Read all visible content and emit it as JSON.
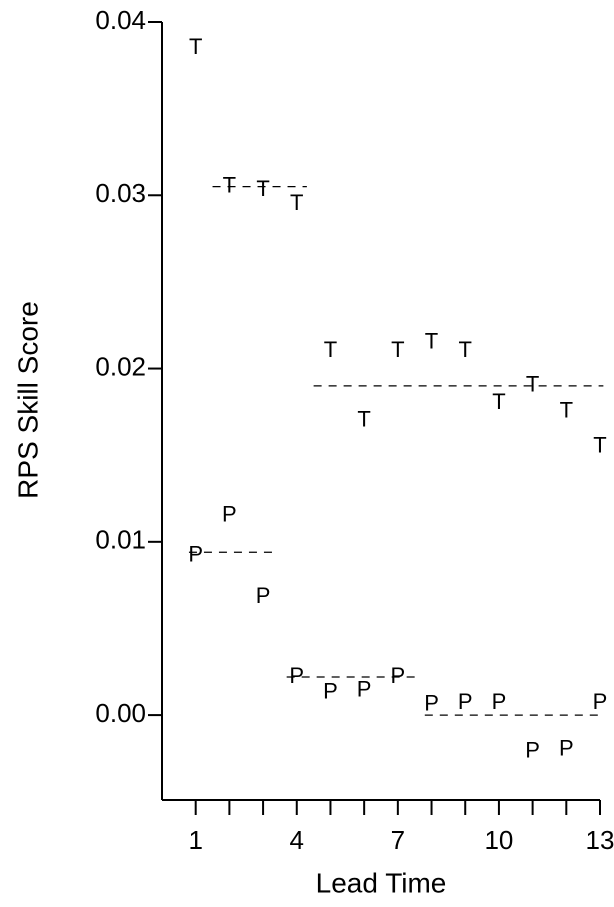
{
  "chart_data": {
    "type": "scatter",
    "xlabel": "Lead Time",
    "ylabel": "RPS  Skill Score",
    "x": [
      1,
      2,
      3,
      4,
      5,
      6,
      7,
      8,
      9,
      10,
      11,
      12,
      13
    ],
    "series": [
      {
        "marker": "T",
        "color": "#000000",
        "values": [
          0.0385,
          0.0305,
          0.0303,
          0.0295,
          0.021,
          0.017,
          0.021,
          0.0215,
          0.021,
          0.018,
          0.019,
          0.0175,
          0.0155
        ]
      },
      {
        "marker": "P",
        "color": "#000000",
        "values": [
          0.0092,
          0.0115,
          0.0068,
          0.0022,
          0.0013,
          0.0014,
          0.0022,
          0.0006,
          0.0007,
          0.0007,
          -0.0021,
          -0.002,
          0.0007
        ]
      }
    ],
    "mean_lines": [
      {
        "x": [
          1.5,
          4.3
        ],
        "value": 0.0305
      },
      {
        "x": [
          4.5,
          13.1
        ],
        "value": 0.019
      },
      {
        "x": [
          0.8,
          3.4
        ],
        "value": 0.0094
      },
      {
        "x": [
          3.7,
          7.6
        ],
        "value": 0.0022
      },
      {
        "x": [
          7.8,
          13.1
        ],
        "value": 0.0
      }
    ],
    "xlim": [
      0,
      13
    ],
    "ylim": [
      -0.0049,
      0.04
    ],
    "xticks": [
      1,
      4,
      7,
      10,
      13
    ],
    "xminorticks": [
      2,
      3,
      5,
      6,
      8,
      9,
      11,
      12
    ],
    "yticks": [
      {
        "value": 0.0,
        "label": "0.00"
      },
      {
        "value": 0.01,
        "label": "0.01"
      },
      {
        "value": 0.02,
        "label": "0.02"
      },
      {
        "value": 0.03,
        "label": "0.03"
      },
      {
        "value": 0.04,
        "label": "0.04"
      }
    ]
  }
}
